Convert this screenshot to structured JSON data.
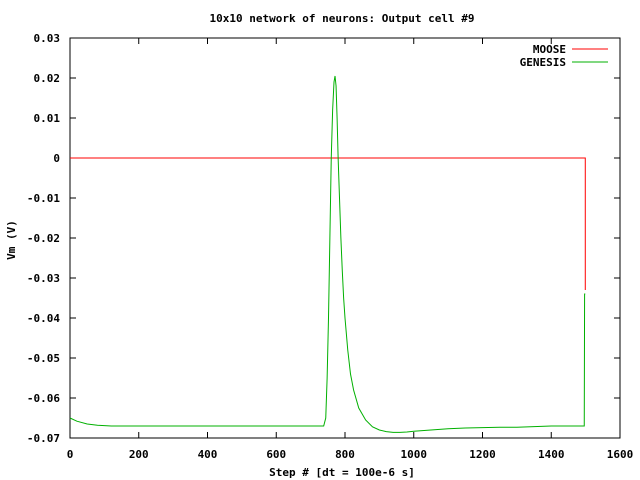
{
  "chart_data": {
    "type": "line",
    "title": "10x10 network of neurons: Output cell #9",
    "xlabel": "Step # [dt = 100e-6 s]",
    "ylabel": "Vm (V)",
    "xlim": [
      0,
      1600
    ],
    "ylim": [
      -0.07,
      0.03
    ],
    "xticks": [
      0,
      200,
      400,
      600,
      800,
      1000,
      1200,
      1400,
      1600
    ],
    "xtick_labels": [
      "0",
      "200",
      "400",
      "600",
      "800",
      "1000",
      "1200",
      "1400",
      "1600"
    ],
    "yticks": [
      -0.07,
      -0.06,
      -0.05,
      -0.04,
      -0.03,
      -0.02,
      -0.01,
      0,
      0.01,
      0.02,
      0.03
    ],
    "ytick_labels": [
      "-0.07",
      "-0.06",
      "-0.05",
      "-0.04",
      "-0.03",
      "-0.02",
      "-0.01",
      "0",
      "0.01",
      "0.02",
      "0.03"
    ],
    "grid": false,
    "legend_position": "top-right",
    "series": [
      {
        "name": "MOOSE",
        "color": "#ff0000",
        "x": [
          0,
          1499,
          1499
        ],
        "y": [
          0,
          0,
          -0.033
        ]
      },
      {
        "name": "GENESIS",
        "color": "#00b000",
        "x": [
          0,
          20,
          50,
          80,
          120,
          200,
          400,
          600,
          738,
          744,
          748,
          752,
          756,
          760,
          764,
          768,
          771,
          774,
          777,
          780,
          784,
          788,
          792,
          796,
          800,
          808,
          816,
          825,
          840,
          860,
          880,
          900,
          920,
          940,
          960,
          980,
          1000,
          1050,
          1100,
          1150,
          1200,
          1250,
          1300,
          1400,
          1496,
          1497,
          1499
        ],
        "y": [
          -0.065,
          -0.0658,
          -0.0665,
          -0.0668,
          -0.067,
          -0.067,
          -0.067,
          -0.067,
          -0.067,
          -0.065,
          -0.055,
          -0.04,
          -0.02,
          0.0,
          0.012,
          0.019,
          0.0205,
          0.018,
          0.01,
          0.0,
          -0.01,
          -0.02,
          -0.028,
          -0.035,
          -0.04,
          -0.048,
          -0.054,
          -0.058,
          -0.0625,
          -0.0655,
          -0.0672,
          -0.068,
          -0.0684,
          -0.0686,
          -0.0686,
          -0.0685,
          -0.0683,
          -0.068,
          -0.0677,
          -0.0675,
          -0.0674,
          -0.0673,
          -0.0673,
          -0.067,
          -0.067,
          -0.034,
          -0.034
        ]
      }
    ]
  }
}
